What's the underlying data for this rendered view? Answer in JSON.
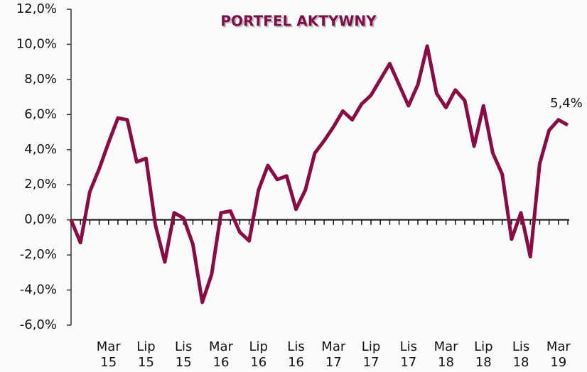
{
  "chart_data": {
    "type": "line",
    "title": "PORTFEL AKTYWNY",
    "categories": [
      null,
      null,
      null,
      null,
      "Mar 15",
      null,
      null,
      null,
      "Lip 15",
      null,
      null,
      null,
      "Lis 15",
      null,
      null,
      null,
      "Mar 16",
      null,
      null,
      null,
      "Lip 16",
      null,
      null,
      null,
      "Lis 16",
      null,
      null,
      null,
      "Mar 17",
      null,
      null,
      null,
      "Lip 17",
      null,
      null,
      null,
      "Lis 17",
      null,
      null,
      null,
      "Mar 18",
      null,
      null,
      null,
      "Lip 18",
      null,
      null,
      null,
      "Lis 18",
      null,
      null,
      null,
      "Mar 19",
      null
    ],
    "values": [
      0,
      -1.3,
      1.6,
      2.9,
      4.4,
      5.8,
      5.7,
      3.3,
      3.5,
      -0.3,
      -2.4,
      0.4,
      0.1,
      -1.4,
      -4.7,
      -3.1,
      0.4,
      0.5,
      -0.7,
      -1.2,
      1.7,
      3.1,
      2.3,
      2.5,
      0.6,
      1.7,
      3.8,
      4.5,
      5.3,
      6.2,
      5.7,
      6.6,
      7.1,
      8.0,
      8.9,
      7.7,
      6.5,
      7.7,
      9.9,
      7.2,
      6.4,
      7.4,
      6.8,
      4.2,
      6.5,
      3.8,
      2.6,
      -1.1,
      0.4,
      -2.1,
      3.2,
      5.1,
      5.7,
      5.4
    ],
    "value_labels": [
      null,
      null,
      null,
      null,
      null,
      null,
      null,
      null,
      null,
      null,
      null,
      null,
      null,
      null,
      null,
      null,
      null,
      null,
      null,
      null,
      null,
      null,
      null,
      null,
      null,
      null,
      null,
      null,
      null,
      null,
      null,
      null,
      null,
      null,
      null,
      null,
      null,
      null,
      null,
      null,
      null,
      null,
      null,
      null,
      null,
      null,
      null,
      null,
      null,
      null,
      null,
      null,
      null,
      "5,4%"
    ],
    "color": "#8a0c45",
    "ylim": [
      -6,
      12
    ],
    "yticks": [
      {
        "value": -6,
        "label": "-6,0%"
      },
      {
        "value": -4,
        "label": "-4,0%"
      },
      {
        "value": -2,
        "label": "-2,0%"
      },
      {
        "value": 0,
        "label": "0,0%"
      },
      {
        "value": 2,
        "label": "2,0%"
      },
      {
        "value": 4,
        "label": "4,0%"
      },
      {
        "value": 6,
        "label": "6,0%"
      },
      {
        "value": 8,
        "label": "8,0%"
      },
      {
        "value": 10,
        "label": "10,0%"
      },
      {
        "value": 12,
        "label": "12,0%"
      }
    ]
  }
}
